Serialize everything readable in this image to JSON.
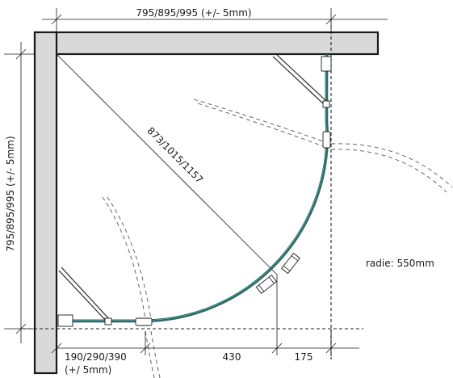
{
  "dimensions": {
    "top_width": "795/895/995 (+/- 5mm)",
    "left_height": "795/895/995  (+/- 5mm)",
    "diagonal": "873/1015/1157",
    "radius": "radie: 550mm",
    "bottom_segment_1_line1": "190/290/390",
    "bottom_segment_1_line2": "(+/ 5mm)",
    "bottom_segment_2": "430",
    "bottom_segment_3": "175"
  }
}
